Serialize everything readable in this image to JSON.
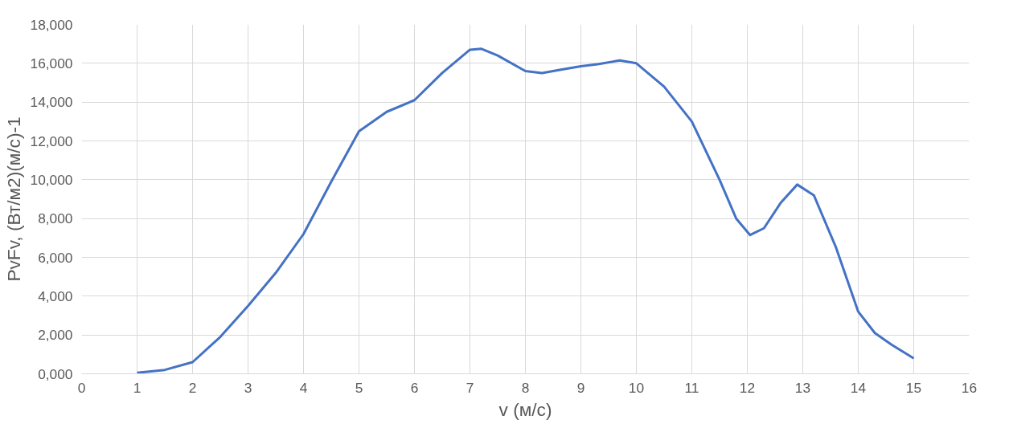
{
  "chart_data": {
    "type": "line",
    "xlabel": "v (м/с)",
    "ylabel": "PvFv, (Вт/м2)(м/с)-1",
    "x": [
      1,
      1.5,
      2,
      2.5,
      3,
      3.5,
      4,
      4.5,
      5,
      5.5,
      6,
      6.5,
      7,
      7.2,
      7.5,
      8,
      8.3,
      8.6,
      9,
      9.3,
      9.7,
      10,
      10.5,
      11,
      11.5,
      11.8,
      12.05,
      12.3,
      12.6,
      12.9,
      13.2,
      13.6,
      14,
      14.3,
      14.6,
      15
    ],
    "series": [
      {
        "color": "#4472c4",
        "values": [
          50,
          200,
          600,
          1900,
          3500,
          5200,
          7200,
          9900,
          12500,
          13500,
          14100,
          15500,
          16700,
          16750,
          16400,
          15600,
          15500,
          15650,
          15850,
          15950,
          16150,
          16000,
          14800,
          13000,
          10000,
          8000,
          7150,
          7500,
          8800,
          9750,
          9200,
          6500,
          3200,
          2100,
          1500,
          800
        ]
      }
    ],
    "xlim": [
      0,
      16
    ],
    "xticks": [
      0,
      1,
      2,
      3,
      4,
      5,
      6,
      7,
      8,
      9,
      10,
      11,
      12,
      13,
      14,
      15,
      16
    ],
    "ylim": [
      0,
      18000
    ],
    "yticks": [
      {
        "value": 0,
        "label": "0,000"
      },
      {
        "value": 2000,
        "label": "2,000"
      },
      {
        "value": 4000,
        "label": "4,000"
      },
      {
        "value": 6000,
        "label": "6,000"
      },
      {
        "value": 8000,
        "label": "8,000"
      },
      {
        "value": 10000,
        "label": "10,000"
      },
      {
        "value": 12000,
        "label": "12,000"
      },
      {
        "value": 14000,
        "label": "14,000"
      },
      {
        "value": 16000,
        "label": "16,000"
      },
      {
        "value": 18000,
        "label": "18,000"
      }
    ],
    "grid": true,
    "marker": "none",
    "line_style": "solid"
  }
}
